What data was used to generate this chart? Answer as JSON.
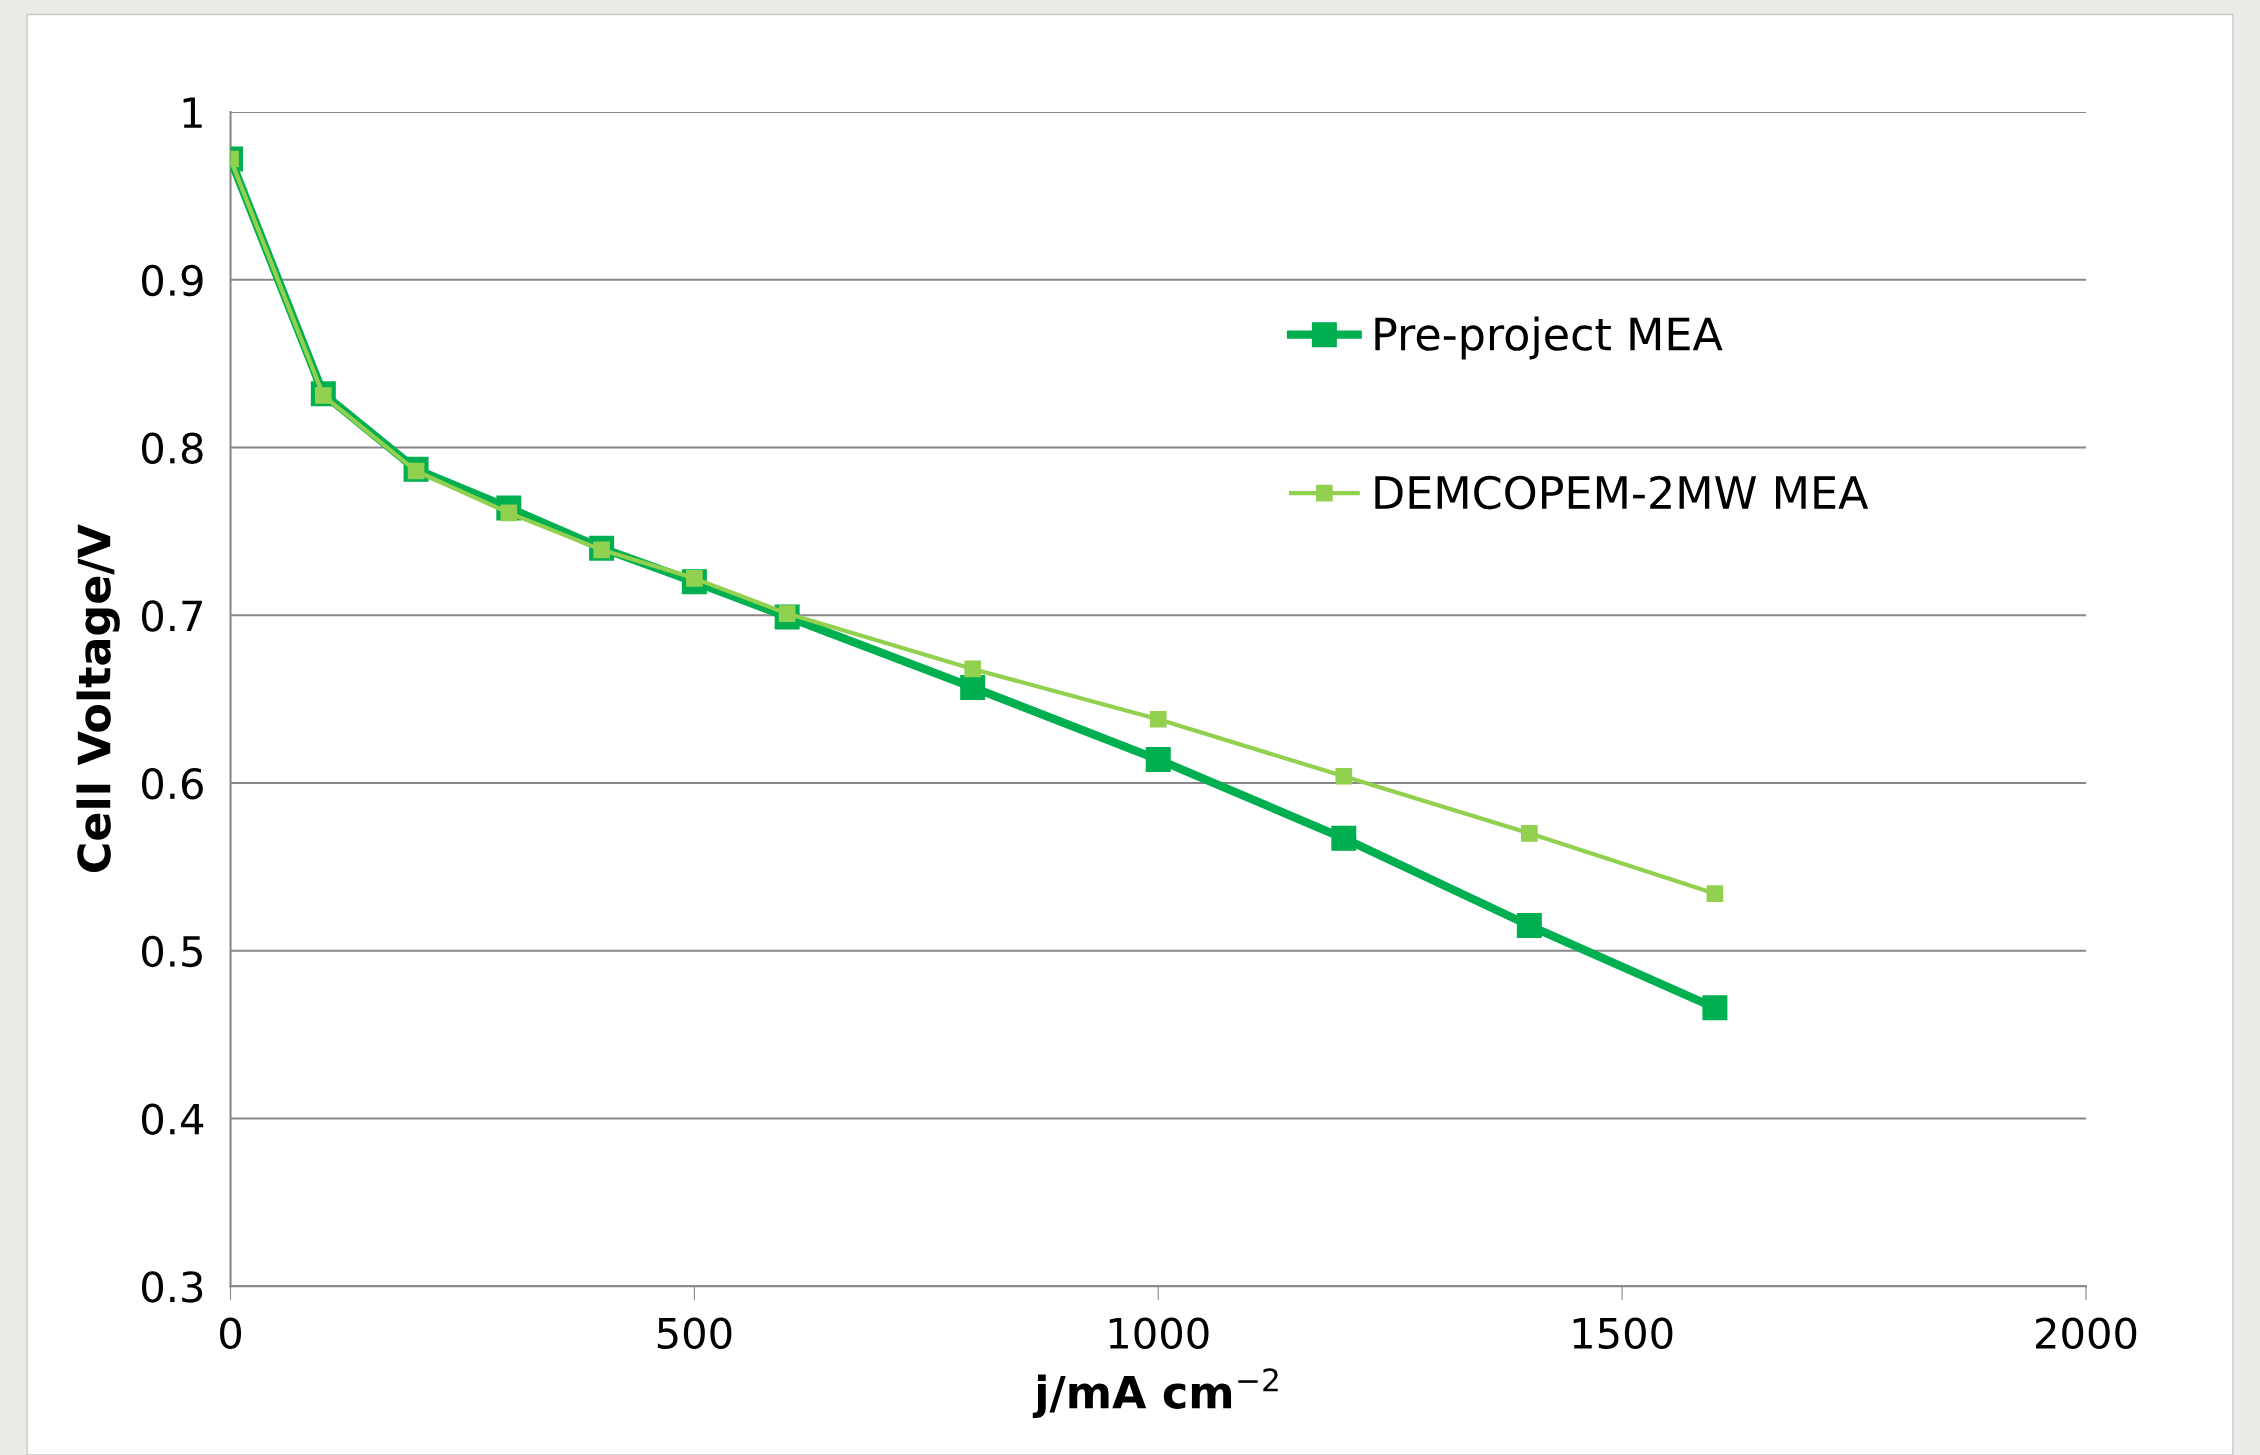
{
  "chart_data": {
    "type": "line",
    "xlabel": "j/mA cm$^{−2}$",
    "ylabel": "Cell Voltage/V",
    "x": [
      0,
      100,
      200,
      300,
      400,
      500,
      600,
      800,
      1000,
      1200,
      1400,
      1600
    ],
    "series": [
      {
        "name": "Pre-project MEA",
        "color": "#00b050",
        "marker": "square",
        "values": [
          0.972,
          0.832,
          0.787,
          0.764,
          0.74,
          0.72,
          0.699,
          0.657,
          0.614,
          0.567,
          0.515,
          0.466
        ]
      },
      {
        "name": "DEMCOPEM-2MW MEA",
        "color": "#92d050",
        "marker": "square",
        "values": [
          0.972,
          0.831,
          0.786,
          0.761,
          0.739,
          0.722,
          0.701,
          0.668,
          0.638,
          0.604,
          0.57,
          0.534
        ]
      }
    ],
    "xlim": [
      0,
      2000
    ],
    "xticks": [
      0,
      500,
      1000,
      1500,
      2000
    ],
    "ylim": [
      0.3,
      1
    ],
    "yticks": [
      0.3,
      0.4,
      0.5,
      0.6,
      0.7,
      0.8,
      0.9,
      1
    ],
    "grid": "y",
    "legend": "top right",
    "line_style": "solid"
  }
}
